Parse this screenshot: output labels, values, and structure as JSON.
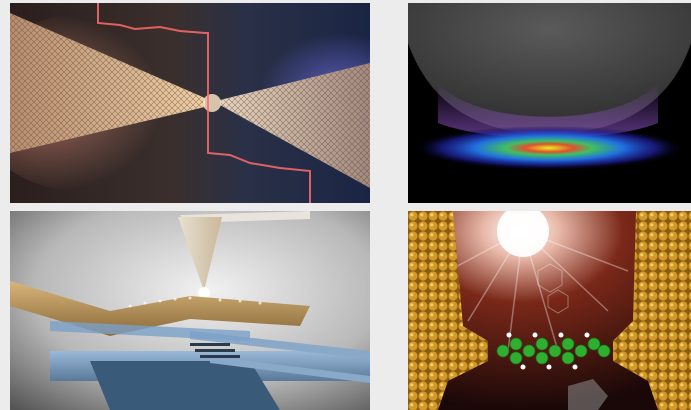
{
  "figure": {
    "panels": [
      {
        "id": "nanotube-junction",
        "description_icon": "carbon-nanocone-junction-icon"
      },
      {
        "id": "tip-enhanced-field",
        "description_icon": "plasmonic-field-icon"
      },
      {
        "id": "probe-on-device",
        "description_icon": "scanning-probe-device-icon"
      },
      {
        "id": "molecular-junction",
        "description_icon": "single-molecule-junction-icon"
      }
    ],
    "colors": {
      "background": "#ececec",
      "panel1_glow_left": "#d98a7a",
      "panel1_glow_right": "#6a6ad8",
      "panel2_field_center": "#e8f020",
      "panel4_gold": "#d29a2a",
      "panel4_molecule": "#2fae2f"
    }
  }
}
